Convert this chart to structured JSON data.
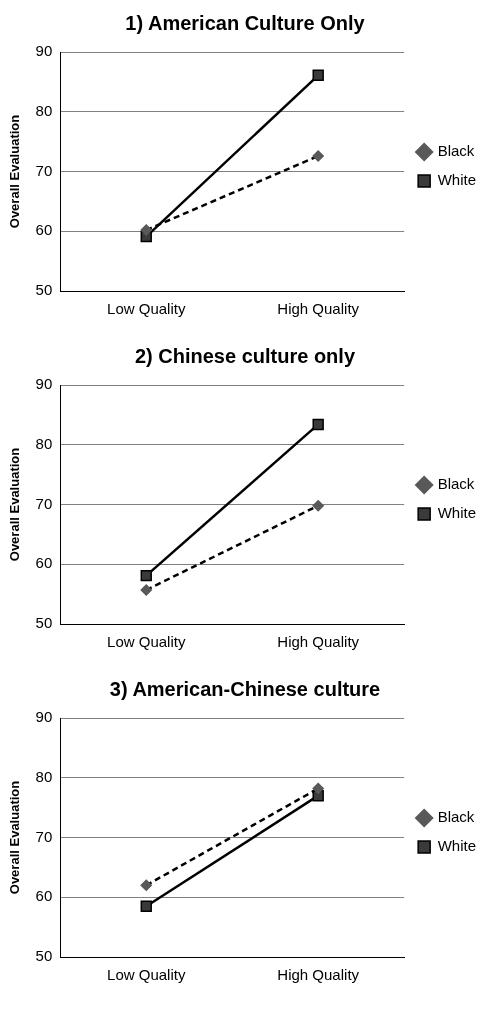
{
  "chart_data": [
    {
      "type": "line",
      "title": "1) American Culture Only",
      "ylabel": "Overall Evaluation",
      "categories": [
        "Low Quality",
        "High Quality"
      ],
      "series": [
        {
          "name": "Black",
          "color": "#595959",
          "values": [
            60.2,
            72.6
          ],
          "marker": "diamond",
          "line_style": "dashed"
        },
        {
          "name": "White",
          "color": "#3a3a3a",
          "values": [
            59.1,
            86.1
          ],
          "marker": "square",
          "line_style": "solid"
        }
      ],
      "ylim": [
        50,
        90
      ],
      "yticks": [
        50,
        60,
        70,
        80,
        90
      ],
      "grid": "y",
      "legend": "right"
    },
    {
      "type": "line",
      "title": "2) Chinese culture only",
      "ylabel": "Overall Evaluation",
      "categories": [
        "Low Quality",
        "High Quality"
      ],
      "series": [
        {
          "name": "Black",
          "color": "#595959",
          "values": [
            55.7,
            69.8
          ],
          "marker": "diamond",
          "line_style": "dashed"
        },
        {
          "name": "White",
          "color": "#3a3a3a",
          "values": [
            58.1,
            83.4
          ],
          "marker": "square",
          "line_style": "solid"
        }
      ],
      "ylim": [
        50,
        90
      ],
      "yticks": [
        50,
        60,
        70,
        80,
        90
      ],
      "grid": "y",
      "legend": "right"
    },
    {
      "type": "line",
      "title": "3) American-Chinese culture",
      "ylabel": "Overall Evaluation",
      "categories": [
        "Low Quality",
        "High Quality"
      ],
      "series": [
        {
          "name": "Black",
          "color": "#595959",
          "values": [
            62.0,
            78.2
          ],
          "marker": "diamond",
          "line_style": "dashed"
        },
        {
          "name": "White",
          "color": "#3a3a3a",
          "values": [
            58.5,
            77.0
          ],
          "marker": "square",
          "line_style": "solid"
        }
      ],
      "ylim": [
        50,
        90
      ],
      "yticks": [
        50,
        60,
        70,
        80,
        90
      ],
      "grid": "y",
      "legend": "right"
    }
  ]
}
